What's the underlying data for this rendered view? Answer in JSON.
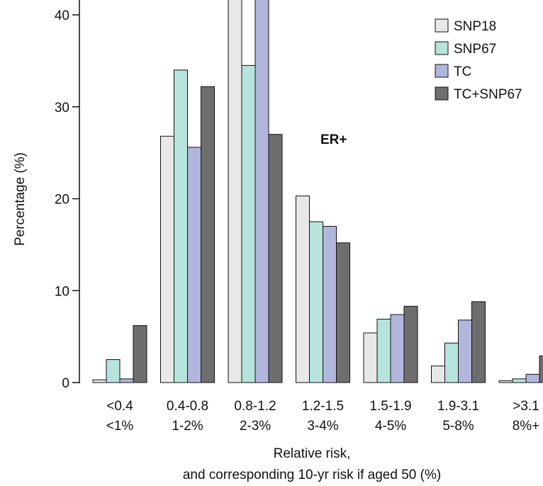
{
  "chart_data": {
    "type": "bar",
    "annotation": "ER+",
    "xlabel_lines": [
      "Relative risk,",
      "and corresponding 10-yr risk if aged 50 (%)"
    ],
    "ylabel": "Percentage (%)",
    "ylim": [
      0,
      40
    ],
    "yticks": [
      0,
      10,
      20,
      30,
      40
    ],
    "grid": false,
    "legend_position": "top-right",
    "categories": [
      {
        "rr": "<0.4",
        "risk": "<1%"
      },
      {
        "rr": "0.4-0.8",
        "risk": "1-2%"
      },
      {
        "rr": "0.8-1.2",
        "risk": "2-3%"
      },
      {
        "rr": "1.2-1.5",
        "risk": "3-4%"
      },
      {
        "rr": "1.5-1.9",
        "risk": "4-5%"
      },
      {
        "rr": "1.9-3.1",
        "risk": "5-8%"
      },
      {
        "rr": ">3.1",
        "risk": "8%+"
      }
    ],
    "series": [
      {
        "name": "SNP18",
        "color": "#e8e8e8",
        "values": [
          0.3,
          26.8,
          44.0,
          20.3,
          5.4,
          1.8,
          0.2
        ]
      },
      {
        "name": "SNP67",
        "color": "#b6e3db",
        "values": [
          2.5,
          34.0,
          34.5,
          17.5,
          6.9,
          4.3,
          0.4
        ]
      },
      {
        "name": "TC",
        "color": "#b3b6dc",
        "values": [
          0.4,
          25.6,
          44.0,
          17.0,
          7.4,
          6.8,
          0.9
        ]
      },
      {
        "name": "TC+SNP67",
        "color": "#6e6e6e",
        "values": [
          6.2,
          32.2,
          27.0,
          15.2,
          8.3,
          8.8,
          2.9
        ]
      }
    ]
  }
}
